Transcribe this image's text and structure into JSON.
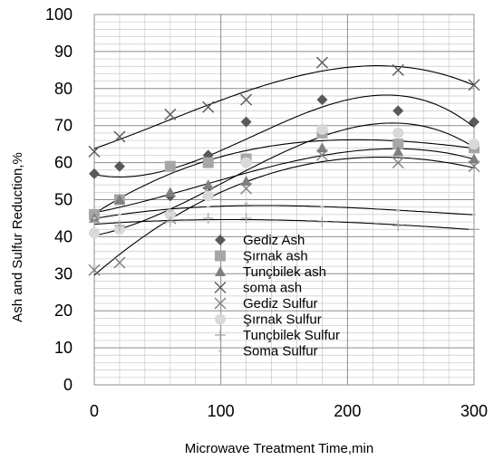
{
  "chart_data": {
    "type": "scatter",
    "xlabel": "Microwave Treatment Time,min",
    "ylabel": "Ash and Sulfur Reduction,%",
    "xlim": [
      0,
      300
    ],
    "ylim": [
      0,
      100
    ],
    "x_ticks": [
      0,
      100,
      200,
      300
    ],
    "y_ticks": [
      0,
      10,
      20,
      30,
      40,
      50,
      60,
      70,
      80,
      90,
      100
    ],
    "grid": true,
    "legend_position": "inside-lower-center",
    "trendlines": "polynomial",
    "series": [
      {
        "name": "Gediz Ash",
        "marker": "diamond",
        "color": "#595959",
        "x": [
          0,
          20,
          60,
          90,
          120,
          180,
          240,
          300
        ],
        "y": [
          57,
          59,
          51,
          62,
          71,
          77,
          74,
          71
        ]
      },
      {
        "name": "Şırnak ash",
        "marker": "square",
        "color": "#a6a6a6",
        "x": [
          0,
          20,
          60,
          90,
          120,
          180,
          240,
          300
        ],
        "y": [
          46,
          50,
          59,
          60,
          61,
          68,
          65,
          64
        ]
      },
      {
        "name": "Tunçbilek  ash",
        "marker": "triangle",
        "color": "#7f7f7f",
        "x": [
          0,
          20,
          60,
          90,
          120,
          180,
          240,
          300
        ],
        "y": [
          45,
          50,
          52,
          54,
          55,
          64,
          63,
          61
        ]
      },
      {
        "name": "soma ash",
        "marker": "x",
        "color": "#595959",
        "x": [
          0,
          20,
          60,
          90,
          120,
          180,
          240,
          300
        ],
        "y": [
          63,
          67,
          73,
          75,
          77,
          87,
          85,
          81
        ]
      },
      {
        "name": "Gediz Sulfur",
        "marker": "x",
        "color": "#7f7f7f",
        "x": [
          0,
          20,
          60,
          90,
          120,
          180,
          240,
          300
        ],
        "y": [
          31,
          33,
          45,
          52,
          53,
          62,
          60,
          59
        ]
      },
      {
        "name": "Şırnak Sulfur",
        "marker": "circle",
        "color": "#d9d9d9",
        "x": [
          0,
          20,
          60,
          90,
          120,
          180,
          240,
          300
        ],
        "y": [
          41,
          42,
          46,
          51,
          60,
          69,
          68,
          65
        ]
      },
      {
        "name": "Tunçbilek Sulfur",
        "marker": "plus",
        "color": "#a6a6a6",
        "x": [
          0,
          20,
          60,
          90,
          120,
          180,
          240,
          300
        ],
        "y": [
          44,
          43,
          44,
          45,
          45,
          44,
          43,
          42
        ]
      },
      {
        "name": "Soma Sulfur",
        "marker": "dash",
        "color": "#bfbfbf",
        "x": [
          0,
          20,
          60,
          90,
          120,
          180,
          240,
          300
        ],
        "y": [
          45,
          46,
          47,
          48,
          49,
          48,
          47,
          46
        ]
      }
    ]
  }
}
